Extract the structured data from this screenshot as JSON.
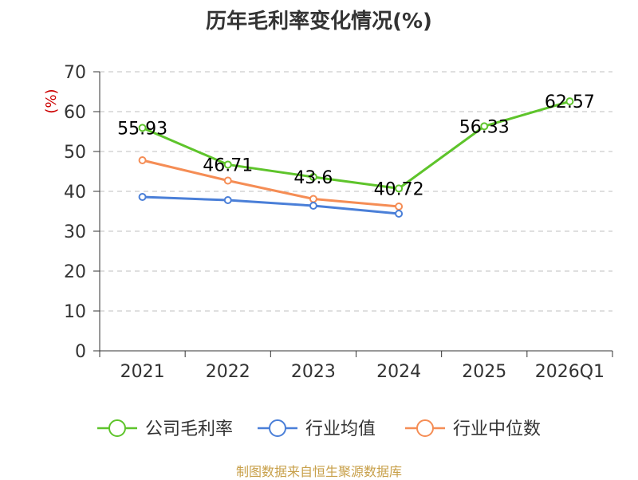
{
  "chart_data": {
    "type": "line",
    "title": "历年毛利率变化情况(%)",
    "ylabel": "(%)",
    "xlabel": "",
    "ylim": [
      0,
      70
    ],
    "yticks": [
      0,
      10,
      20,
      30,
      40,
      50,
      60,
      70
    ],
    "grid": true,
    "legend_position": "bottom",
    "categories": [
      "2021",
      "2022",
      "2023",
      "2024",
      "2025",
      "2026Q1"
    ],
    "series": [
      {
        "name": "公司毛利率",
        "color": "#5ec42b",
        "values": [
          55.93,
          46.71,
          43.6,
          40.72,
          56.33,
          62.57
        ],
        "show_labels": true
      },
      {
        "name": "行业均值",
        "color": "#4a7fd8",
        "values": [
          38.6,
          37.8,
          36.4,
          34.4,
          null,
          null
        ],
        "show_labels": false
      },
      {
        "name": "行业中位数",
        "color": "#f58d55",
        "values": [
          47.8,
          42.7,
          38.1,
          36.2,
          null,
          null
        ],
        "show_labels": false
      }
    ]
  },
  "source": "制图数据来自恒生聚源数据库"
}
